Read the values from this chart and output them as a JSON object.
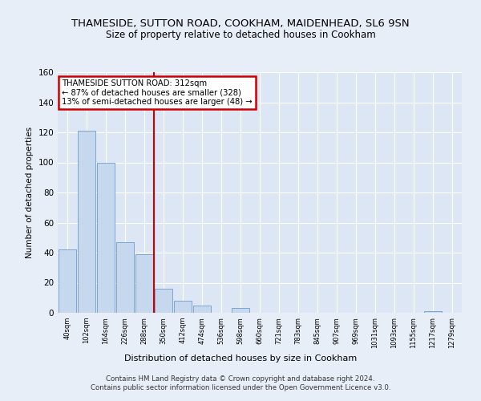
{
  "title": "THAMESIDE, SUTTON ROAD, COOKHAM, MAIDENHEAD, SL6 9SN",
  "subtitle": "Size of property relative to detached houses in Cookham",
  "xlabel": "Distribution of detached houses by size in Cookham",
  "ylabel": "Number of detached properties",
  "bar_color": "#c5d8ed",
  "bar_edge_color": "#5b8fc9",
  "categories": [
    "40sqm",
    "102sqm",
    "164sqm",
    "226sqm",
    "288sqm",
    "350sqm",
    "412sqm",
    "474sqm",
    "536sqm",
    "598sqm",
    "660sqm",
    "721sqm",
    "783sqm",
    "845sqm",
    "907sqm",
    "969sqm",
    "1031sqm",
    "1093sqm",
    "1155sqm",
    "1217sqm",
    "1279sqm"
  ],
  "values": [
    42,
    121,
    100,
    47,
    39,
    16,
    8,
    5,
    0,
    3,
    0,
    0,
    0,
    0,
    0,
    0,
    0,
    0,
    0,
    1,
    0
  ],
  "ylim": [
    0,
    160
  ],
  "yticks": [
    0,
    20,
    40,
    60,
    80,
    100,
    120,
    140,
    160
  ],
  "vline_x": 4.5,
  "vline_color": "#cc0000",
  "annotation_line1": "THAMESIDE SUTTON ROAD: 312sqm",
  "annotation_line2": "← 87% of detached houses are smaller (328)",
  "annotation_line3": "13% of semi-detached houses are larger (48) →",
  "annotation_box_color": "#cc0000",
  "footnote": "Contains HM Land Registry data © Crown copyright and database right 2024.\nContains public sector information licensed under the Open Government Licence v3.0.",
  "bg_color": "#e8eef7",
  "plot_bg_color": "#dce6f5",
  "title_fontsize": 9.5,
  "subtitle_fontsize": 8.5,
  "grid_color": "#ffffff"
}
